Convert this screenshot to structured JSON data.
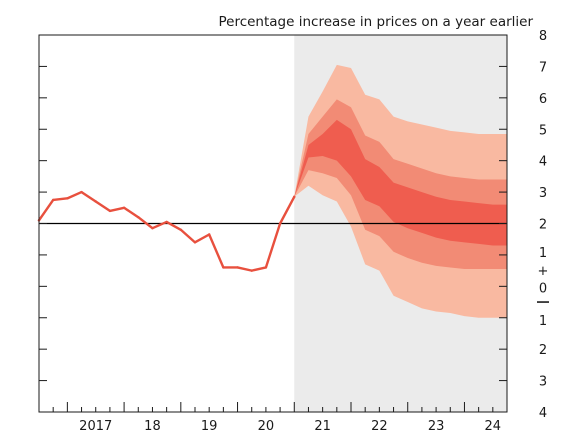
{
  "chart_data": {
    "type": "area",
    "title": "Percentage increase in prices on a year earlier",
    "xlabel": "",
    "ylabel": "",
    "x_start": 2016.5,
    "x_end": 2024.75,
    "xlim": [
      2016.5,
      2024.75
    ],
    "ylim": [
      -4,
      8
    ],
    "y_ticks": [
      {
        "value": 8,
        "label": "8"
      },
      {
        "value": 7,
        "label": "7"
      },
      {
        "value": 6,
        "label": "6"
      },
      {
        "value": 5,
        "label": "5"
      },
      {
        "value": 4,
        "label": "4"
      },
      {
        "value": 3,
        "label": "3"
      },
      {
        "value": 2,
        "label": "2"
      },
      {
        "value": 1,
        "label": "1"
      },
      {
        "value": 0,
        "label": "0"
      },
      {
        "value": -1,
        "label": "1"
      },
      {
        "value": -2,
        "label": "2"
      },
      {
        "value": -3,
        "label": "3"
      },
      {
        "value": -4,
        "label": "4"
      }
    ],
    "sign_labels": {
      "plus": "+",
      "minus": "–"
    },
    "x_labels": [
      {
        "value": 2017.5,
        "label": "2017"
      },
      {
        "value": 2018.5,
        "label": "18"
      },
      {
        "value": 2019.5,
        "label": "19"
      },
      {
        "value": 2020.5,
        "label": "20"
      },
      {
        "value": 2021.5,
        "label": "21"
      },
      {
        "value": 2022.5,
        "label": "22"
      },
      {
        "value": 2023.5,
        "label": "23"
      },
      {
        "value": 2024.5,
        "label": "24"
      }
    ],
    "target_line": 2,
    "projection_start": 2021.0,
    "history": {
      "name": "CPI inflation",
      "x": [
        2016.5,
        2016.75,
        2017.0,
        2017.25,
        2017.5,
        2017.75,
        2018.0,
        2018.25,
        2018.5,
        2018.75,
        2019.0,
        2019.25,
        2019.5,
        2019.75,
        2020.0,
        2020.25,
        2020.5,
        2020.75,
        2021.0
      ],
      "y": [
        2.1,
        2.75,
        2.8,
        3.0,
        2.7,
        2.4,
        2.5,
        2.2,
        1.85,
        2.05,
        1.8,
        1.4,
        1.65,
        0.6,
        0.6,
        0.5,
        0.6,
        2.0,
        2.85
      ]
    },
    "fan": {
      "x": [
        2021.0,
        2021.25,
        2021.5,
        2021.75,
        2022.0,
        2022.25,
        2022.5,
        2022.75,
        2023.0,
        2023.25,
        2023.5,
        2023.75,
        2024.0,
        2024.25,
        2024.5,
        2024.75
      ],
      "bands": [
        {
          "name": "outer",
          "color": "#f9b9a1",
          "upper": [
            2.85,
            5.4,
            6.2,
            7.05,
            6.95,
            6.1,
            5.95,
            5.4,
            5.25,
            5.15,
            5.05,
            4.95,
            4.9,
            4.85,
            4.85,
            4.85
          ],
          "lower": [
            2.85,
            3.2,
            2.9,
            2.7,
            1.9,
            0.7,
            0.5,
            -0.3,
            -0.5,
            -0.7,
            -0.8,
            -0.85,
            -0.95,
            -1.0,
            -1.0,
            -1.0
          ]
        },
        {
          "name": "middle",
          "color": "#f28b75",
          "upper": [
            2.85,
            4.85,
            5.4,
            5.95,
            5.7,
            4.8,
            4.6,
            4.05,
            3.9,
            3.75,
            3.6,
            3.5,
            3.45,
            3.4,
            3.4,
            3.4
          ],
          "lower": [
            2.85,
            3.7,
            3.6,
            3.45,
            2.9,
            1.8,
            1.6,
            1.1,
            0.9,
            0.75,
            0.65,
            0.6,
            0.55,
            0.55,
            0.55,
            0.55
          ]
        },
        {
          "name": "inner",
          "color": "#ef5d4f",
          "upper": [
            2.85,
            4.5,
            4.85,
            5.3,
            5.0,
            4.05,
            3.8,
            3.3,
            3.15,
            3.0,
            2.85,
            2.75,
            2.7,
            2.65,
            2.6,
            2.6
          ],
          "lower": [
            2.85,
            4.1,
            4.15,
            4.0,
            3.5,
            2.75,
            2.55,
            2.05,
            1.85,
            1.7,
            1.55,
            1.45,
            1.4,
            1.35,
            1.3,
            1.3
          ]
        }
      ]
    },
    "colors": {
      "history_line": "#e8503e",
      "projection_shade": "#ebebeb",
      "target_line": "#000000",
      "axis": "#1a1a1a"
    },
    "grid": false,
    "legend": "none"
  }
}
